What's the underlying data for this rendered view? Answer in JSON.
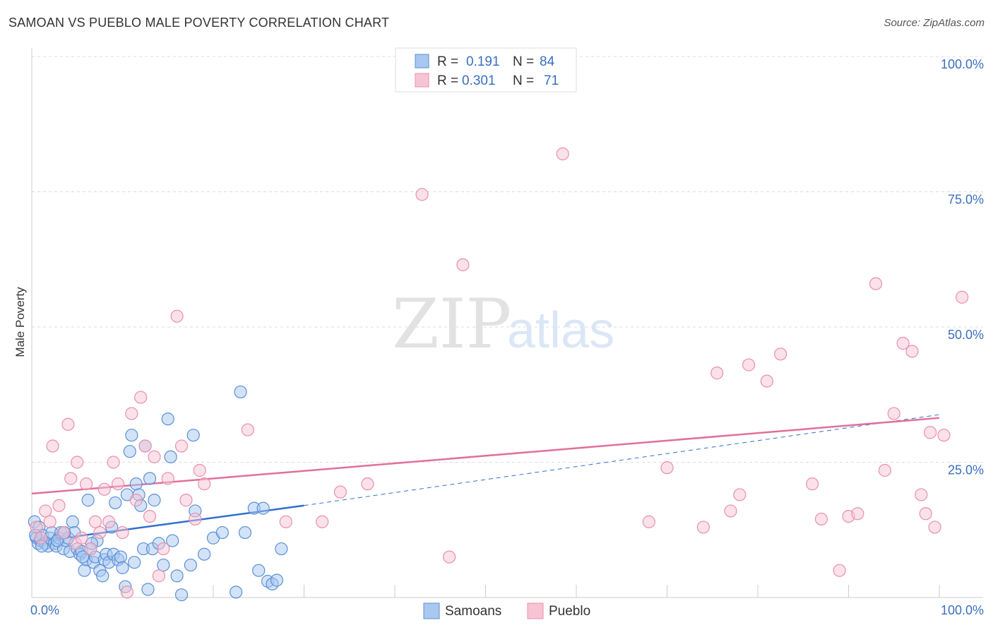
{
  "title": "SAMOAN VS PUEBLO MALE POVERTY CORRELATION CHART",
  "source": "Source: ZipAtlas.com",
  "watermark": {
    "zip": "ZIP",
    "atlas": "atlas"
  },
  "colors": {
    "samoans_fill": "#a8c8f0",
    "samoans_stroke": "#5b8fd6",
    "samoans_line": "#2f6fcf",
    "pueblo_fill": "#f7c4d4",
    "pueblo_stroke": "#e890ab",
    "pueblo_line": "#e0709a",
    "tick_text": "#3a6fbf",
    "grid": "#dddddd"
  },
  "legend": {
    "rows": [
      {
        "r_label": "R = ",
        "r_value": "0.191",
        "n_label": "N = ",
        "n_value": "84"
      },
      {
        "r_label": "R = ",
        "r_value": "0.301",
        "n_label": "N = ",
        "n_value": "71"
      }
    ]
  },
  "bottom_legend": [
    "Samoans",
    "Pueblo"
  ],
  "chart_data": {
    "type": "scatter",
    "title": "SAMOAN VS PUEBLO MALE POVERTY CORRELATION CHART",
    "xlabel": "",
    "ylabel": "Male Poverty",
    "xlim": [
      0,
      100
    ],
    "ylim": [
      0,
      100
    ],
    "x_tick_labels": [
      "0.0%",
      "100.0%"
    ],
    "y_tick_labels": [
      "25.0%",
      "50.0%",
      "75.0%",
      "100.0%"
    ],
    "y_ticks": [
      25,
      50,
      75,
      100
    ],
    "grid": true,
    "legend_position": "top-center",
    "series": [
      {
        "name": "Samoans",
        "R": 0.191,
        "N": 84,
        "trend": {
          "x0": 0,
          "y0": 10.2,
          "x1": 30,
          "y1": 17.0,
          "dashed_to_x": 100,
          "dashed_to_y": 33.8
        },
        "points": [
          [
            0.3,
            14
          ],
          [
            0.5,
            11
          ],
          [
            0.7,
            10
          ],
          [
            0.8,
            13
          ],
          [
            1.0,
            10.5
          ],
          [
            1.2,
            11.5
          ],
          [
            1.5,
            10
          ],
          [
            1.8,
            9.5
          ],
          [
            2.0,
            11
          ],
          [
            2.2,
            12
          ],
          [
            2.5,
            10
          ],
          [
            2.7,
            9.5
          ],
          [
            3.0,
            11
          ],
          [
            3.2,
            12
          ],
          [
            3.5,
            9
          ],
          [
            3.8,
            10.5
          ],
          [
            4.0,
            11
          ],
          [
            4.2,
            8.5
          ],
          [
            4.5,
            14
          ],
          [
            4.7,
            12
          ],
          [
            5.0,
            9
          ],
          [
            5.3,
            8
          ],
          [
            5.5,
            8.5
          ],
          [
            5.8,
            5
          ],
          [
            6.0,
            7
          ],
          [
            6.2,
            18
          ],
          [
            6.5,
            9
          ],
          [
            6.8,
            6.5
          ],
          [
            7.0,
            7.5
          ],
          [
            7.2,
            10.5
          ],
          [
            7.5,
            5
          ],
          [
            7.8,
            4
          ],
          [
            8.0,
            7
          ],
          [
            8.2,
            8
          ],
          [
            8.5,
            6.5
          ],
          [
            8.8,
            13
          ],
          [
            9.0,
            8
          ],
          [
            9.2,
            17.5
          ],
          [
            9.5,
            7
          ],
          [
            9.8,
            7.5
          ],
          [
            10.0,
            5.5
          ],
          [
            10.3,
            2
          ],
          [
            10.5,
            19
          ],
          [
            10.8,
            27
          ],
          [
            11.0,
            30
          ],
          [
            11.3,
            6.5
          ],
          [
            11.5,
            21
          ],
          [
            11.8,
            19
          ],
          [
            12.0,
            17
          ],
          [
            12.3,
            9
          ],
          [
            12.5,
            28
          ],
          [
            12.8,
            1.5
          ],
          [
            13.0,
            22
          ],
          [
            13.3,
            9
          ],
          [
            13.5,
            18
          ],
          [
            14.0,
            10
          ],
          [
            14.5,
            6
          ],
          [
            15.0,
            33
          ],
          [
            15.3,
            26
          ],
          [
            15.5,
            10.5
          ],
          [
            16.0,
            4
          ],
          [
            16.5,
            0.5
          ],
          [
            17.5,
            6
          ],
          [
            17.8,
            30
          ],
          [
            18.0,
            16
          ],
          [
            19.0,
            8
          ],
          [
            20.0,
            11
          ],
          [
            21.0,
            12
          ],
          [
            22.5,
            1
          ],
          [
            23.0,
            38
          ],
          [
            23.5,
            12
          ],
          [
            24.5,
            16.5
          ],
          [
            25.0,
            5
          ],
          [
            25.5,
            16.5
          ],
          [
            26.0,
            3
          ],
          [
            26.5,
            2.5
          ],
          [
            27.0,
            3.2
          ],
          [
            27.5,
            9
          ],
          [
            0.4,
            11.5
          ],
          [
            1.1,
            9.5
          ],
          [
            2.8,
            10.5
          ],
          [
            3.6,
            12
          ],
          [
            5.6,
            7.5
          ],
          [
            6.6,
            10
          ]
        ]
      },
      {
        "name": "Pueblo",
        "R": 0.301,
        "N": 71,
        "trend": {
          "x0": 0,
          "y0": 19.2,
          "x1": 100,
          "y1": 33.2
        },
        "points": [
          [
            0.5,
            13
          ],
          [
            1.0,
            11
          ],
          [
            1.5,
            16
          ],
          [
            2.0,
            14
          ],
          [
            2.3,
            28
          ],
          [
            3.0,
            17
          ],
          [
            3.5,
            12
          ],
          [
            4.0,
            32
          ],
          [
            4.3,
            22
          ],
          [
            4.8,
            10
          ],
          [
            5.0,
            25
          ],
          [
            5.5,
            11
          ],
          [
            6.0,
            21
          ],
          [
            6.5,
            9
          ],
          [
            7.0,
            14
          ],
          [
            7.5,
            12
          ],
          [
            8.0,
            20
          ],
          [
            8.5,
            14
          ],
          [
            9.0,
            25
          ],
          [
            9.5,
            21
          ],
          [
            10.0,
            12
          ],
          [
            10.5,
            1
          ],
          [
            11.0,
            34
          ],
          [
            11.5,
            18
          ],
          [
            12.0,
            37
          ],
          [
            12.5,
            28
          ],
          [
            13.0,
            15
          ],
          [
            13.5,
            26
          ],
          [
            14.0,
            4
          ],
          [
            14.5,
            9
          ],
          [
            15.0,
            22
          ],
          [
            16.0,
            52
          ],
          [
            16.5,
            28
          ],
          [
            17.0,
            18
          ],
          [
            18.0,
            14.5
          ],
          [
            18.5,
            23.5
          ],
          [
            19.0,
            21
          ],
          [
            23.8,
            31
          ],
          [
            28.0,
            14
          ],
          [
            32.0,
            14
          ],
          [
            34.0,
            19.5
          ],
          [
            37.0,
            21
          ],
          [
            43.0,
            74.5
          ],
          [
            46.0,
            7.5
          ],
          [
            47.5,
            61.5
          ],
          [
            58.5,
            82
          ],
          [
            68.0,
            14
          ],
          [
            70.0,
            24
          ],
          [
            74.0,
            13
          ],
          [
            75.5,
            41.5
          ],
          [
            77.0,
            16
          ],
          [
            78.0,
            19
          ],
          [
            79.0,
            43
          ],
          [
            81.0,
            40
          ],
          [
            82.5,
            45
          ],
          [
            86.0,
            21
          ],
          [
            87.0,
            14.5
          ],
          [
            89.0,
            5
          ],
          [
            90.0,
            15
          ],
          [
            91.0,
            15.5
          ],
          [
            93.0,
            58
          ],
          [
            94.0,
            23.5
          ],
          [
            95.0,
            34
          ],
          [
            96.0,
            47
          ],
          [
            97.0,
            45.5
          ],
          [
            98.0,
            19
          ],
          [
            98.5,
            15.5
          ],
          [
            99.0,
            30.5
          ],
          [
            99.5,
            13
          ],
          [
            100.5,
            30
          ],
          [
            102.5,
            55.5
          ]
        ]
      }
    ]
  }
}
